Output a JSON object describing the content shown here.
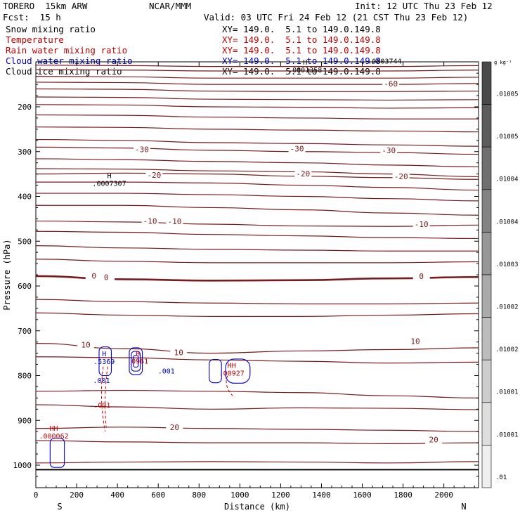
{
  "header": {
    "model": "TORERO  15km ARW",
    "org": "NCAR/MMM",
    "init": "Init: 12 UTC Thu 23 Feb 12",
    "fcst": "Fcst:  15 h",
    "valid": "Valid: 03 UTC Fri 24 Feb 12 (21 CST Thu 23 Feb 12)"
  },
  "fields": [
    {
      "name": "Snow mixing ratio",
      "xy": "",
      "color": "#000000"
    },
    {
      "name": "Temperature",
      "xy": "XY= 149.0.  5.1 to 149.0.149.8",
      "color": "#c00000"
    },
    {
      "name": "Rain water mixing ratio",
      "xy": "XY= 149.0.  5.1 to 149.0.149.8",
      "color": "#c00000"
    },
    {
      "name": "Cloud water mixing ratio",
      "xy": "XY= 149.0.  5.1 to 149.0.149.8",
      "color": "#0000cc"
    },
    {
      "name": "Cloud ice mixing ratio",
      "xy": "XY= 149.0.  5.1 to 149.0.149.8",
      "color": "#000000"
    }
  ],
  "xy_snow": "XY= 149.0.  5.1 to 149.0.149.8",
  "colorbar": {
    "unit": "g kg⁻¹",
    "labels": [
      ".01005",
      ".01005",
      ".01004",
      ".01004",
      ".01003",
      ".01002",
      ".01002",
      ".01001",
      ".01001",
      ".01"
    ],
    "shades": [
      "#4a4a4a",
      "#5c5c5c",
      "#707070",
      "#838383",
      "#979797",
      "#aaaaaa",
      "#bcbcbc",
      "#cdcdcd",
      "#dedede",
      "#efefef"
    ]
  },
  "chart_data": {
    "type": "contour",
    "xlabel": "Distance (km)",
    "ylabel": "Pressure (hPa)",
    "xlim": [
      0,
      2170
    ],
    "ylim": [
      1050,
      100
    ],
    "xticks": [
      0,
      200,
      400,
      600,
      800,
      1000,
      1200,
      1400,
      1600,
      1800,
      2000
    ],
    "yticks": [
      200,
      300,
      400,
      500,
      600,
      700,
      800,
      900,
      1000
    ],
    "endpoints": {
      "left": "S",
      "right": "N"
    },
    "surface_pressure": 1010,
    "temperature_isotherms": [
      {
        "p": [
          107,
          108,
          110,
          110,
          110,
          108
        ],
        "label": null
      },
      {
        "p": [
          117,
          118,
          120,
          120,
          120,
          118
        ],
        "label": null
      },
      {
        "p": [
          132,
          133,
          136,
          136,
          136,
          134
        ],
        "label": null
      },
      {
        "p": [
          145,
          146,
          150,
          150,
          150,
          148
        ],
        "label": "-60",
        "label_x": 1740
      },
      {
        "p": [
          160,
          161,
          165,
          166,
          166,
          165
        ],
        "label": null
      },
      {
        "p": [
          178,
          179,
          183,
          184,
          185,
          184
        ],
        "label": null
      },
      {
        "p": [
          195,
          196,
          200,
          201,
          203,
          202
        ],
        "label": null
      },
      {
        "p": [
          218,
          219,
          223,
          225,
          227,
          227
        ],
        "label": null
      },
      {
        "p": [
          245,
          246,
          250,
          252,
          254,
          256
        ],
        "label": null
      },
      {
        "p": [
          273,
          275,
          280,
          282,
          285,
          288
        ],
        "label": null
      },
      {
        "p": [
          290,
          292,
          297,
          300,
          302,
          306
        ],
        "label": "-30",
        "label_x": 1280
      },
      {
        "p": [
          316,
          318,
          322,
          325,
          330,
          334
        ],
        "label": null
      },
      {
        "p": [
          338,
          339,
          343,
          345,
          350,
          356
        ],
        "label": null
      },
      {
        "p": [
          350,
          348,
          350,
          355,
          358,
          362
        ],
        "label": "-20",
        "label_x": 1310
      },
      {
        "p": [
          368,
          368,
          370,
          375,
          380,
          386
        ],
        "label": null
      },
      {
        "p": [
          393,
          393,
          396,
          400,
          405,
          410
        ],
        "label": null
      },
      {
        "p": [
          420,
          420,
          425,
          430,
          437,
          442
        ],
        "label": null
      },
      {
        "p": [
          455,
          457,
          462,
          466,
          467,
          464
        ],
        "label": "-10",
        "label_x": 620
      },
      {
        "p": [
          478,
          480,
          485,
          488,
          492,
          494
        ],
        "label": null
      },
      {
        "p": [
          510,
          515,
          518,
          520,
          522,
          522
        ],
        "label": null
      },
      {
        "p": [
          540,
          545,
          548,
          548,
          548,
          546
        ],
        "label": null
      },
      {
        "p": [
          578,
          585,
          588,
          587,
          583,
          580
        ],
        "label": "0",
        "label_x": 290,
        "thick": true
      },
      {
        "p": [
          630,
          635,
          638,
          640,
          640,
          638
        ],
        "label": null
      },
      {
        "p": [
          660,
          665,
          668,
          668,
          665,
          662
        ],
        "label": null
      },
      {
        "p": [
          728,
          740,
          750,
          745,
          742,
          738
        ],
        "label": "10",
        "label_x": 1750
      },
      {
        "p": [
          758,
          760,
          765,
          768,
          772,
          770
        ],
        "label": null
      },
      {
        "p": [
          835,
          833,
          835,
          838,
          845,
          850
        ],
        "label": null
      },
      {
        "p": [
          865,
          870,
          875,
          872,
          873,
          876
        ],
        "label": null
      },
      {
        "p": [
          918,
          915,
          918,
          920,
          922,
          925
        ],
        "label": "20",
        "label_x": 720
      },
      {
        "p": [
          945,
          948,
          950,
          950,
          952,
          950
        ],
        "label": null
      },
      {
        "p": [
          995,
          993,
          992,
          993,
          995,
          992
        ],
        "label": null
      }
    ],
    "label_extras": [
      {
        "text": "-60",
        "x": 1740,
        "p": 148
      },
      {
        "text": "-30",
        "x": 520,
        "p": 295
      },
      {
        "text": "-30",
        "x": 1280,
        "p": 293
      },
      {
        "text": "-30",
        "x": 1730,
        "p": 297
      },
      {
        "text": "-20",
        "x": 580,
        "p": 352
      },
      {
        "text": "-20",
        "x": 1310,
        "p": 349
      },
      {
        "text": "-20",
        "x": 1790,
        "p": 355
      },
      {
        "text": "-10",
        "x": 560,
        "p": 455
      },
      {
        "text": "-10",
        "x": 680,
        "p": 456
      },
      {
        "text": "-10",
        "x": 1890,
        "p": 462
      },
      {
        "text": "0",
        "x": 285,
        "p": 577
      },
      {
        "text": "0",
        "x": 345,
        "p": 580
      },
      {
        "text": "0",
        "x": 1890,
        "p": 578
      },
      {
        "text": "10",
        "x": 245,
        "p": 731
      },
      {
        "text": "10",
        "x": 700,
        "p": 748
      },
      {
        "text": "10",
        "x": 1860,
        "p": 723
      },
      {
        "text": "20",
        "x": 680,
        "p": 915
      },
      {
        "text": "20",
        "x": 1950,
        "p": 943
      }
    ],
    "extrema": [
      {
        "mark": "H",
        "value": ".0007307",
        "x": 360,
        "p": 373,
        "color": "#000000"
      },
      {
        "mark": "H",
        "value": ".0001358",
        "x": 1320,
        "p": 120,
        "color": "#000000"
      },
      {
        "mark": "",
        "value": ".0003744",
        "x": 1710,
        "p": 100,
        "color": "#000000"
      },
      {
        "mark": "H",
        "value": ".5369",
        "x": 335,
        "p": 771,
        "color": "#0000cc"
      },
      {
        "mark": "H",
        "value": ".0961",
        "x": 500,
        "p": 770,
        "color": "#c00000"
      },
      {
        "mark": "",
        "value": ".001",
        "x": 640,
        "p": 792,
        "color": "#0000cc"
      },
      {
        "mark": "",
        "value": ".001",
        "x": 322,
        "p": 813,
        "color": "#0000cc"
      },
      {
        "mark": "",
        "value": ".001",
        "x": 325,
        "p": 868,
        "color": "#c00000"
      },
      {
        "mark": "HH",
        "value": ".00927",
        "x": 960,
        "p": 797,
        "color": "#c00000"
      },
      {
        "mark": "HH",
        "value": ".000062",
        "x": 88,
        "p": 937,
        "color": "#c00000"
      }
    ],
    "cloud_water_contours": [
      {
        "cx": 340,
        "cp": 768,
        "rx": 30,
        "rp": 32
      },
      {
        "cx": 490,
        "cp": 768,
        "rx": 32,
        "rp": 30
      },
      {
        "cx": 490,
        "cp": 768,
        "rx": 22,
        "rp": 22
      },
      {
        "cx": 490,
        "cp": 768,
        "rx": 12,
        "rp": 13
      },
      {
        "cx": 880,
        "cp": 790,
        "rx": 30,
        "rp": 26
      },
      {
        "cx": 990,
        "cp": 790,
        "rx": 60,
        "rp": 27
      }
    ]
  }
}
